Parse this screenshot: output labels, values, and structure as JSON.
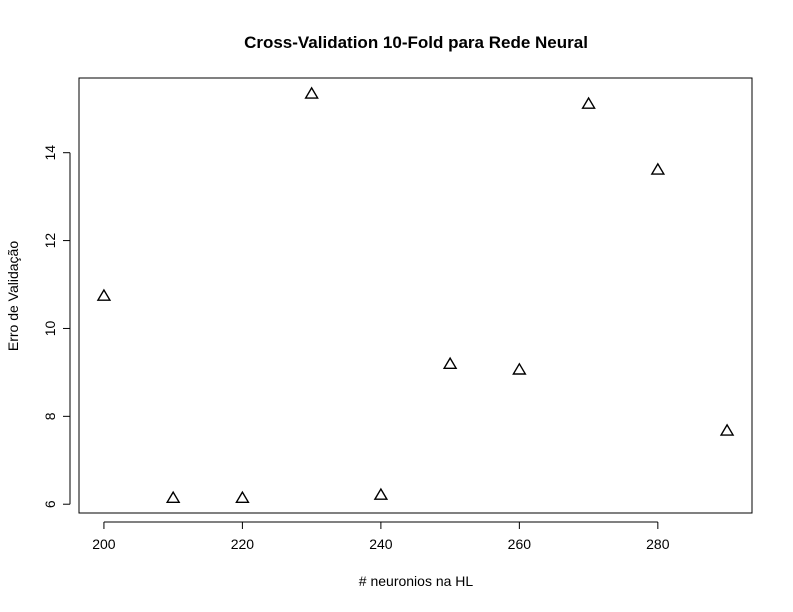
{
  "chart_data": {
    "type": "scatter",
    "title": "Cross-Validation 10-Fold para Rede Neural",
    "xlabel": "# neuronios na HL",
    "ylabel": "Erro de Validação",
    "x": [
      200,
      210,
      220,
      230,
      240,
      250,
      260,
      270,
      280,
      290
    ],
    "y": [
      10.75,
      6.15,
      6.15,
      15.35,
      6.22,
      9.2,
      9.07,
      15.12,
      13.62,
      7.68
    ],
    "xlim": [
      196.4,
      293.6
    ],
    "ylim": [
      5.8,
      15.7
    ],
    "xticks": [
      200,
      220,
      240,
      260,
      280
    ],
    "yticks": [
      6,
      8,
      10,
      12,
      14
    ],
    "marker": "open-triangle",
    "grid": false,
    "color": "#000000"
  }
}
